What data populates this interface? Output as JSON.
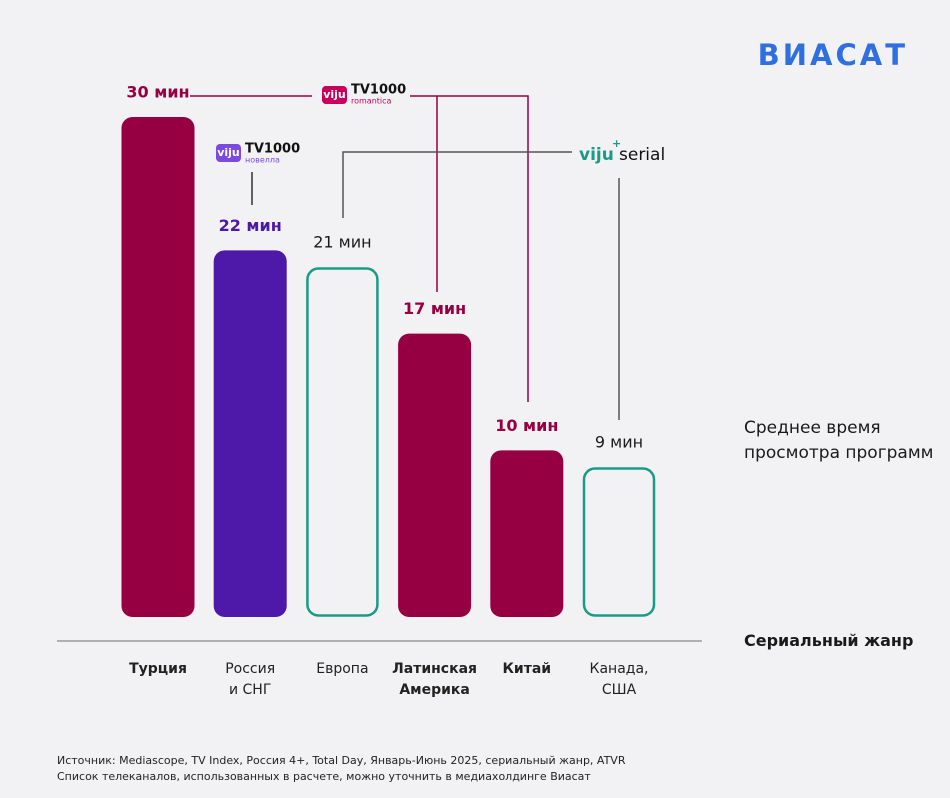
{
  "chart_data": {
    "type": "bar",
    "brand": "ВИАСАТ",
    "categories": [
      "Турция",
      "Россия\nи СНГ",
      "Европа",
      "Латинская\nАмерика",
      "Китай",
      "Канада,\nСША"
    ],
    "values": [
      30,
      22,
      21,
      17,
      10,
      9
    ],
    "value_labels": [
      "30 мин",
      "22 мин",
      "21 мин",
      "17 мин",
      "10 мин",
      "9 мин"
    ],
    "colors": [
      "#960042",
      "#4e18a8",
      "#1b9a86",
      "#960042",
      "#960042",
      "#1b9a86"
    ],
    "bar_styles": [
      "filled",
      "filled",
      "outline",
      "filled",
      "filled",
      "outline"
    ],
    "highlight": [
      true,
      false,
      false,
      true,
      true,
      false
    ],
    "value_axis_title": "Среднее время\nпросмотра программ",
    "category_axis_title": "Сериальный жанр",
    "channels": [
      {
        "logo": "viju",
        "name": "TV1000",
        "sub": "romantica"
      },
      {
        "logo": "viju",
        "name": "TV1000",
        "sub": "новелла"
      },
      {
        "logo": "viju",
        "name": "serial"
      }
    ],
    "footnotes": [
      "Источник: Mediascope, TV Index, Россия 4+, Total Day, Январь-Июнь 2025, сериальный жанр, ATVR",
      "Список телеканалов, использованных в расчете, можно уточнить в медиахолдинге Виасат"
    ]
  }
}
